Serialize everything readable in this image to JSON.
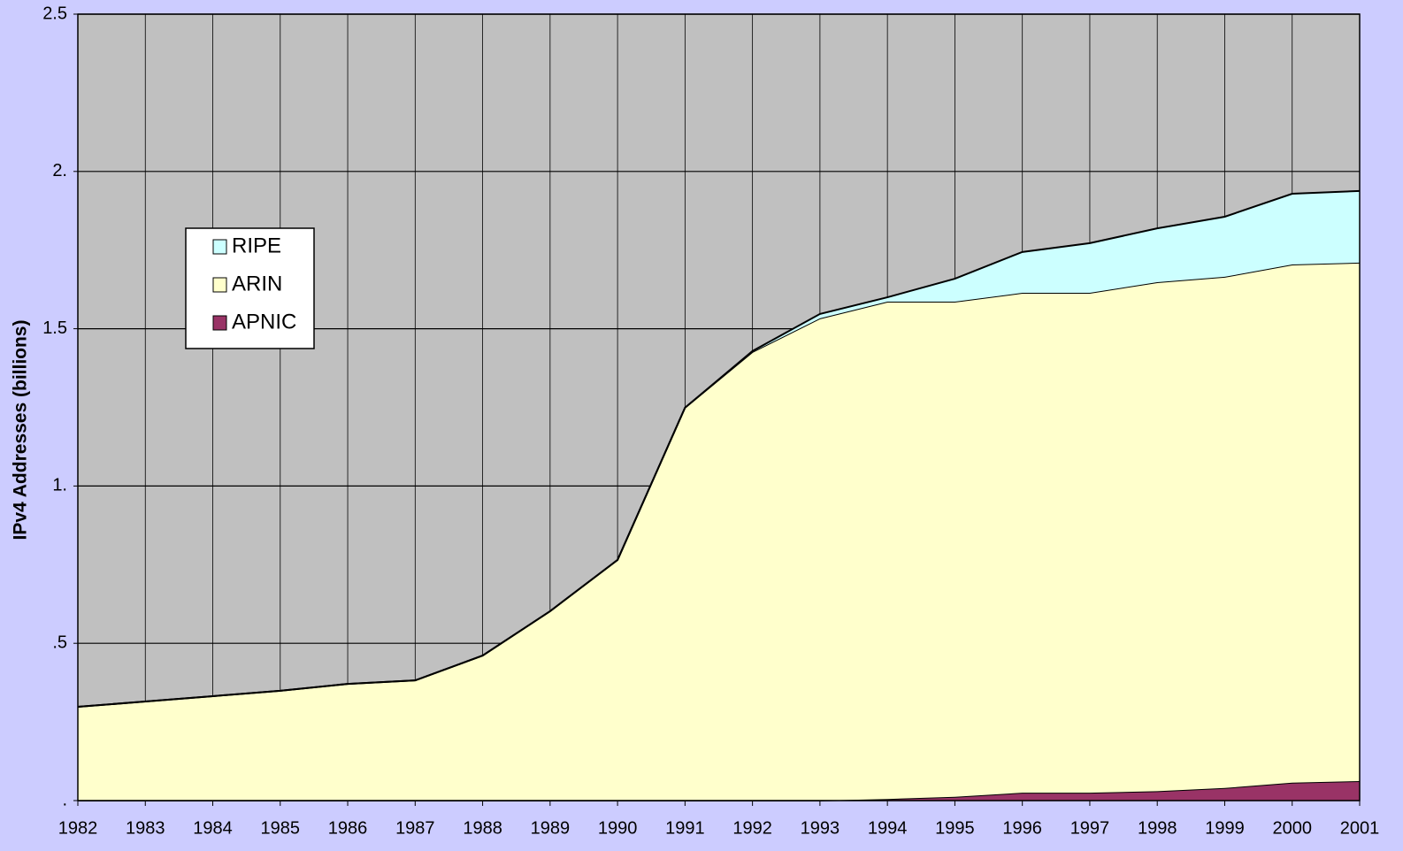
{
  "chart_data": {
    "type": "stacked_area",
    "y_label": "IPv4 Addresses (billions)",
    "x": [
      1982,
      1983,
      1984,
      1985,
      1986,
      1987,
      1988,
      1989,
      1990,
      1991,
      1992,
      1993,
      1994,
      1995,
      1996,
      1997,
      1998,
      1999,
      2000,
      2001
    ],
    "xlim": [
      1982,
      2001
    ],
    "ylim": [
      0,
      2.5
    ],
    "yticks": [
      {
        "value": 0,
        "label": "."
      },
      {
        "value": 0.5,
        "label": ".5"
      },
      {
        "value": 1,
        "label": "1."
      },
      1.5,
      {
        "value": 2,
        "label": "2."
      },
      2.5
    ],
    "grid": true,
    "series": [
      {
        "name": "APNIC",
        "color": "#993366",
        "values": [
          0,
          0,
          0,
          0,
          0,
          0,
          0,
          0,
          0,
          0,
          0,
          0,
          0.005,
          0.012,
          0.025,
          0.025,
          0.03,
          0.04,
          0.057,
          0.062
        ]
      },
      {
        "name": "ARIN",
        "color": "#ffffcc",
        "values": [
          0.298,
          0.315,
          0.332,
          0.349,
          0.371,
          0.382,
          0.461,
          0.602,
          0.765,
          1.249,
          1.426,
          1.533,
          1.581,
          1.574,
          1.589,
          1.589,
          1.618,
          1.625,
          1.647,
          1.648
        ]
      },
      {
        "name": "RIPE",
        "color": "#ccffff",
        "values": [
          0,
          0,
          0,
          0,
          0,
          0,
          0,
          0,
          0,
          0,
          0.003,
          0.014,
          0.014,
          0.073,
          0.13,
          0.158,
          0.171,
          0.191,
          0.225,
          0.228
        ]
      }
    ]
  }
}
